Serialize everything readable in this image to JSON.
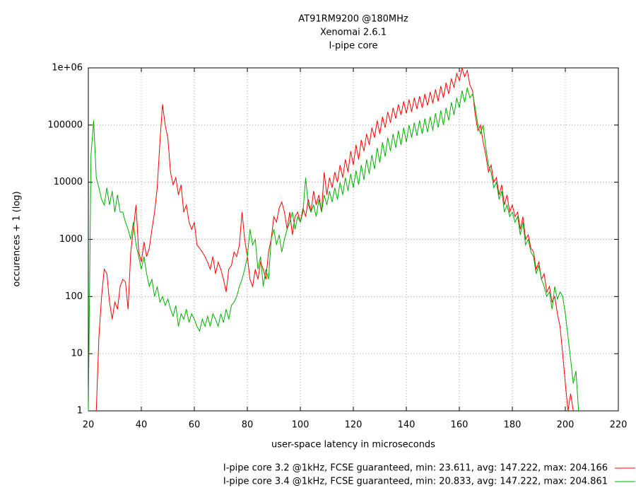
{
  "chart_data": {
    "type": "line",
    "title": [
      "AT91RM9200 @180MHz",
      "Xenomai 2.6.1",
      "I-pipe core"
    ],
    "x_label": "user-space latency in microseconds",
    "y_label": "occurences + 1 (log)",
    "xlim": [
      20,
      220
    ],
    "xticks": [
      20,
      40,
      60,
      80,
      100,
      120,
      140,
      160,
      180,
      200,
      220
    ],
    "ylim": [
      1,
      1000000
    ],
    "log_y": true,
    "yticks": [
      1,
      10,
      100,
      1000,
      10000,
      100000,
      {
        "value": 1000000,
        "label": "1e+06"
      }
    ],
    "grid": true,
    "legend": "bottom-right",
    "series": [
      {
        "name": "I-pipe core 3.2 @1kHz, FCSE guaranteed, min: 23.611, avg: 147.222, max: 204.166",
        "color": "#ff0000",
        "x": [
          23,
          24,
          25,
          26,
          27,
          28,
          29,
          30,
          31,
          32,
          33,
          34,
          35,
          36,
          37,
          38,
          39,
          40,
          41,
          42,
          43,
          44,
          45,
          46,
          47,
          48,
          49,
          50,
          51,
          52,
          53,
          54,
          55,
          56,
          57,
          58,
          59,
          60,
          61,
          62,
          63,
          64,
          65,
          66,
          67,
          68,
          69,
          70,
          71,
          72,
          73,
          74,
          75,
          76,
          77,
          78,
          79,
          80,
          81,
          82,
          83,
          84,
          85,
          86,
          87,
          88,
          89,
          90,
          91,
          92,
          93,
          94,
          95,
          96,
          97,
          98,
          99,
          100,
          101,
          102,
          103,
          104,
          105,
          106,
          107,
          108,
          109,
          110,
          111,
          112,
          113,
          114,
          115,
          116,
          117,
          118,
          119,
          120,
          121,
          122,
          123,
          124,
          125,
          126,
          127,
          128,
          129,
          130,
          131,
          132,
          133,
          134,
          135,
          136,
          137,
          138,
          139,
          140,
          141,
          142,
          143,
          144,
          145,
          146,
          147,
          148,
          149,
          150,
          151,
          152,
          153,
          154,
          155,
          156,
          157,
          158,
          159,
          160,
          161,
          162,
          163,
          164,
          165,
          166,
          167,
          168,
          169,
          170,
          171,
          172,
          173,
          174,
          175,
          176,
          177,
          178,
          179,
          180,
          181,
          182,
          183,
          184,
          185,
          186,
          187,
          188,
          189,
          190,
          191,
          192,
          193,
          194,
          195,
          196,
          197,
          198,
          199,
          200,
          201,
          202,
          203
        ],
        "values": [
          1,
          20,
          100,
          300,
          250,
          80,
          40,
          80,
          60,
          150,
          200,
          180,
          60,
          600,
          1500,
          4000,
          600,
          400,
          900,
          500,
          700,
          1500,
          3000,
          8000,
          50000,
          230000,
          100000,
          60000,
          15000,
          9000,
          12000,
          6000,
          9000,
          3000,
          4000,
          2000,
          1500,
          2000,
          800,
          700,
          600,
          500,
          400,
          300,
          500,
          250,
          400,
          300,
          200,
          120,
          300,
          350,
          600,
          500,
          800,
          3000,
          1000,
          500,
          200,
          150,
          300,
          200,
          400,
          300,
          200,
          600,
          1000,
          2500,
          2000,
          3500,
          4500,
          3000,
          1500,
          3000,
          1200,
          2500,
          3000,
          2000,
          3500,
          2500,
          5000,
          3000,
          7000,
          4000,
          6000,
          3000,
          15000,
          6000,
          12000,
          8000,
          15000,
          10000,
          20000,
          12000,
          25000,
          15000,
          35000,
          20000,
          45000,
          25000,
          55000,
          35000,
          70000,
          45000,
          90000,
          60000,
          120000,
          70000,
          140000,
          90000,
          170000,
          110000,
          200000,
          130000,
          230000,
          150000,
          260000,
          160000,
          280000,
          170000,
          300000,
          190000,
          320000,
          200000,
          350000,
          220000,
          380000,
          240000,
          420000,
          260000,
          480000,
          300000,
          550000,
          350000,
          650000,
          450000,
          800000,
          600000,
          1000000,
          700000,
          900000,
          500000,
          400000,
          150000,
          80000,
          100000,
          50000,
          30000,
          15000,
          20000,
          10000,
          12000,
          6000,
          9000,
          4000,
          6000,
          3000,
          4000,
          2500,
          3000,
          1500,
          2500,
          1000,
          1200,
          700,
          600,
          300,
          400,
          200,
          250,
          120,
          150,
          80,
          100,
          50,
          30,
          10,
          3,
          1,
          2,
          1
        ]
      },
      {
        "name": "I-pipe core 3.4 @1kHz, FCSE guaranteed, min: 20.833, avg: 147.222, max: 204.861",
        "color": "#00b000",
        "x": [
          20,
          21,
          22,
          23,
          24,
          25,
          26,
          27,
          28,
          29,
          30,
          31,
          32,
          33,
          34,
          35,
          36,
          37,
          38,
          39,
          40,
          41,
          42,
          43,
          44,
          45,
          46,
          47,
          48,
          49,
          50,
          51,
          52,
          53,
          54,
          55,
          56,
          57,
          58,
          59,
          60,
          61,
          62,
          63,
          64,
          65,
          66,
          67,
          68,
          69,
          70,
          71,
          72,
          73,
          74,
          75,
          76,
          77,
          78,
          79,
          80,
          81,
          82,
          83,
          84,
          85,
          86,
          87,
          88,
          89,
          90,
          91,
          92,
          93,
          94,
          95,
          96,
          97,
          98,
          99,
          100,
          101,
          102,
          103,
          104,
          105,
          106,
          107,
          108,
          109,
          110,
          111,
          112,
          113,
          114,
          115,
          116,
          117,
          118,
          119,
          120,
          121,
          122,
          123,
          124,
          125,
          126,
          127,
          128,
          129,
          130,
          131,
          132,
          133,
          134,
          135,
          136,
          137,
          138,
          139,
          140,
          141,
          142,
          143,
          144,
          145,
          146,
          147,
          148,
          149,
          150,
          151,
          152,
          153,
          154,
          155,
          156,
          157,
          158,
          159,
          160,
          161,
          162,
          163,
          164,
          165,
          166,
          167,
          168,
          169,
          170,
          171,
          172,
          173,
          174,
          175,
          176,
          177,
          178,
          179,
          180,
          181,
          182,
          183,
          184,
          185,
          186,
          187,
          188,
          189,
          190,
          191,
          192,
          193,
          194,
          195,
          196,
          197,
          198,
          199,
          200,
          201,
          202,
          203,
          204,
          205
        ],
        "values": [
          1,
          30000,
          120000,
          12000,
          8000,
          5000,
          4000,
          8000,
          4000,
          7000,
          3000,
          6000,
          3000,
          3000,
          2000,
          1500,
          1000,
          2000,
          800,
          500,
          300,
          500,
          250,
          150,
          200,
          100,
          150,
          80,
          100,
          70,
          90,
          60,
          45,
          70,
          30,
          50,
          40,
          60,
          35,
          50,
          40,
          30,
          25,
          40,
          30,
          45,
          30,
          50,
          40,
          30,
          50,
          35,
          60,
          40,
          70,
          80,
          100,
          150,
          200,
          300,
          500,
          1500,
          800,
          1000,
          300,
          500,
          150,
          300,
          200,
          1000,
          1500,
          800,
          1200,
          600,
          1000,
          1500,
          2000,
          3000,
          1500,
          2500,
          2000,
          3000,
          12000,
          4000,
          3000,
          4000,
          2500,
          5000,
          3000,
          6000,
          4000,
          7000,
          4500,
          8000,
          5000,
          10000,
          6000,
          12000,
          7000,
          14000,
          8000,
          16000,
          9000,
          20000,
          11000,
          25000,
          14000,
          30000,
          17000,
          40000,
          22000,
          50000,
          28000,
          60000,
          35000,
          70000,
          40000,
          80000,
          45000,
          90000,
          50000,
          100000,
          60000,
          110000,
          65000,
          120000,
          70000,
          130000,
          75000,
          140000,
          80000,
          160000,
          90000,
          180000,
          100000,
          200000,
          120000,
          250000,
          150000,
          300000,
          200000,
          400000,
          250000,
          450000,
          300000,
          350000,
          200000,
          100000,
          70000,
          100000,
          40000,
          20000,
          15000,
          8000,
          10000,
          5000,
          7000,
          3000,
          4000,
          2500,
          3000,
          2000,
          2500,
          1200,
          2000,
          800,
          1000,
          600,
          500,
          250,
          350,
          200,
          150,
          100,
          120,
          60,
          150,
          90,
          120,
          100,
          50,
          20,
          8,
          3,
          5,
          1
        ]
      }
    ]
  }
}
